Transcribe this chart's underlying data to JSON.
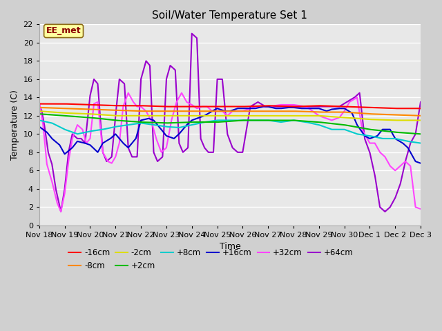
{
  "title": "Soil/Water Temperature Set 1",
  "xlabel": "Time",
  "ylabel": "Temperature (C)",
  "ylim": [
    0,
    22
  ],
  "xlim": [
    0,
    15
  ],
  "bg_color": "#e8e8e8",
  "annotation_text": "EE_met",
  "annotation_color": "#8B0000",
  "annotation_bg": "#FFFFA0",
  "series": {
    "-16cm": {
      "color": "#FF0000",
      "lw": 1.5
    },
    "-8cm": {
      "color": "#FF8800",
      "lw": 1.5
    },
    "-2cm": {
      "color": "#DDDD00",
      "lw": 1.5
    },
    "+2cm": {
      "color": "#00BB00",
      "lw": 1.5
    },
    "+8cm": {
      "color": "#00CCCC",
      "lw": 1.5
    },
    "+16cm": {
      "color": "#0000CC",
      "lw": 1.5
    },
    "+32cm": {
      "color": "#FF44FF",
      "lw": 1.5
    },
    "+64cm": {
      "color": "#9900CC",
      "lw": 1.5
    }
  },
  "tick_labels": [
    "Nov 18",
    "Nov 19",
    "Nov 20",
    "Nov 21",
    "Nov 22",
    "Nov 23",
    "Nov 24",
    "Nov 25",
    "Nov 26",
    "Nov 27",
    "Nov 28",
    "Nov 29",
    "Nov 30",
    "Dec 1",
    "Dec 2",
    "Dec 3"
  ],
  "tick_positions": [
    0,
    1,
    2,
    3,
    4,
    5,
    6,
    7,
    8,
    9,
    10,
    11,
    12,
    13,
    14,
    15
  ]
}
